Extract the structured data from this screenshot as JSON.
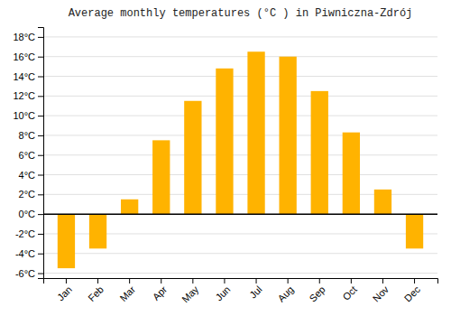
{
  "chart_data": {
    "type": "bar",
    "title": "Average monthly temperatures (°C ) in Piwniczna-Zdrój",
    "categories": [
      "Jan",
      "Feb",
      "Mar",
      "Apr",
      "May",
      "Jun",
      "Jul",
      "Aug",
      "Sep",
      "Oct",
      "Nov",
      "Dec"
    ],
    "values": [
      -5.5,
      -3.5,
      1.5,
      7.5,
      11.5,
      14.8,
      16.5,
      16.0,
      12.5,
      8.3,
      2.5,
      -3.5
    ],
    "color": "#FFB300",
    "ylim": [
      -6.5,
      19
    ],
    "yticks": [
      {
        "value": -6,
        "label": "-6°C"
      },
      {
        "value": -4,
        "label": "-4°C"
      },
      {
        "value": -2,
        "label": "-2°C"
      },
      {
        "value": 0,
        "label": "0°C"
      },
      {
        "value": 2,
        "label": "2°C"
      },
      {
        "value": 4,
        "label": "4°C"
      },
      {
        "value": 6,
        "label": "6°C"
      },
      {
        "value": 8,
        "label": "8°C"
      },
      {
        "value": 10,
        "label": "10°C"
      },
      {
        "value": 12,
        "label": "12°C"
      },
      {
        "value": 14,
        "label": "14°C"
      },
      {
        "value": 16,
        "label": "16°C"
      },
      {
        "value": 18,
        "label": "18°C"
      }
    ],
    "grid": true
  }
}
